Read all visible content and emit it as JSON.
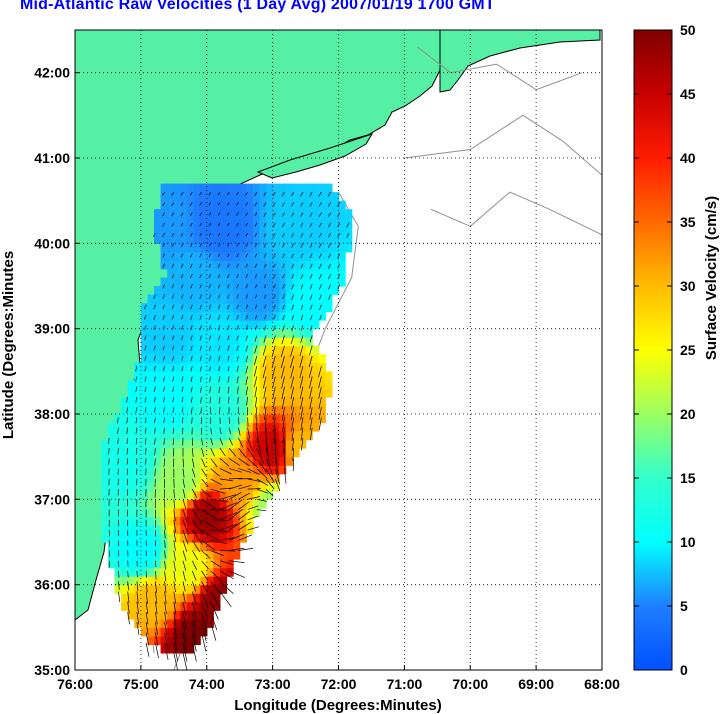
{
  "title": "Mid-Atlantic Raw Velocities (1 Day Avg) 2007/01/19 1700 GMT",
  "colors": {
    "title": "#0000ff",
    "land": "#55f0a4",
    "coast": "#000000",
    "bathymetry": "#909090",
    "grid": "#000000",
    "arrows": "#000000"
  },
  "map": {
    "xlabel": "Longitude (Degrees:Minutes)",
    "ylabel": "Latitude (Degrees:Minutes",
    "lon_range": [
      -76,
      -68
    ],
    "lat_range": [
      35,
      42.5
    ],
    "lon_ticks": [
      {
        "value": -76,
        "label": "76:00"
      },
      {
        "value": -75,
        "label": "75:00"
      },
      {
        "value": -74,
        "label": "74:00"
      },
      {
        "value": -73,
        "label": "73:00"
      },
      {
        "value": -72,
        "label": "72:00"
      },
      {
        "value": -71,
        "label": "71:00"
      },
      {
        "value": -70,
        "label": "70:00"
      },
      {
        "value": -69,
        "label": "69:00"
      },
      {
        "value": -68,
        "label": "68:00"
      }
    ],
    "lat_ticks": [
      {
        "value": 35,
        "label": "35:00"
      },
      {
        "value": 36,
        "label": "36:00"
      },
      {
        "value": 37,
        "label": "37:00"
      },
      {
        "value": 38,
        "label": "38:00"
      },
      {
        "value": 39,
        "label": "39:00"
      },
      {
        "value": 40,
        "label": "40:00"
      },
      {
        "value": 41,
        "label": "41:00"
      },
      {
        "value": 42,
        "label": "42:00"
      }
    ],
    "grid": "dotted"
  },
  "colorbar": {
    "label": "Surface Velocity (cm/s)",
    "range": [
      0,
      50
    ],
    "ticks": [
      {
        "value": 0,
        "label": "0"
      },
      {
        "value": 5,
        "label": "5"
      },
      {
        "value": 10,
        "label": "10"
      },
      {
        "value": 15,
        "label": "15"
      },
      {
        "value": 20,
        "label": "20"
      },
      {
        "value": 25,
        "label": "25"
      },
      {
        "value": 30,
        "label": "30"
      },
      {
        "value": 35,
        "label": "35"
      },
      {
        "value": 40,
        "label": "40"
      },
      {
        "value": 45,
        "label": "45"
      },
      {
        "value": 50,
        "label": "50"
      }
    ],
    "colormap": "jet"
  },
  "chart_data": {
    "type": "heatmap",
    "description_units": "surface current speed in cm/s on a lon/lat grid with direction vectors",
    "x_range": [
      -76,
      -68
    ],
    "y_range": [
      35,
      42.5
    ],
    "value_range": [
      0,
      50
    ],
    "speed_field": [
      {
        "lon": -74.6,
        "lat": 40.2,
        "speed": 6
      },
      {
        "lon": -73.8,
        "lat": 40.2,
        "speed": 4
      },
      {
        "lon": -72.6,
        "lat": 40.2,
        "speed": 8
      },
      {
        "lon": -74.2,
        "lat": 39.6,
        "speed": 7
      },
      {
        "lon": -73.2,
        "lat": 39.4,
        "speed": 6
      },
      {
        "lon": -72.4,
        "lat": 39.3,
        "speed": 10
      },
      {
        "lon": -74.6,
        "lat": 38.9,
        "speed": 8
      },
      {
        "lon": -73.8,
        "lat": 38.8,
        "speed": 9
      },
      {
        "lon": -72.8,
        "lat": 38.5,
        "speed": 30
      },
      {
        "lon": -74.6,
        "lat": 38.2,
        "speed": 10
      },
      {
        "lon": -73.8,
        "lat": 38.0,
        "speed": 13
      },
      {
        "lon": -73.0,
        "lat": 37.6,
        "speed": 45
      },
      {
        "lon": -72.6,
        "lat": 37.6,
        "speed": 30
      },
      {
        "lon": -75.2,
        "lat": 37.4,
        "speed": 12
      },
      {
        "lon": -74.4,
        "lat": 37.2,
        "speed": 20
      },
      {
        "lon": -73.5,
        "lat": 37.2,
        "speed": 32
      },
      {
        "lon": -73.0,
        "lat": 36.9,
        "speed": 20
      },
      {
        "lon": -74.0,
        "lat": 36.8,
        "speed": 48
      },
      {
        "lon": -75.0,
        "lat": 36.4,
        "speed": 10
      },
      {
        "lon": -74.3,
        "lat": 36.2,
        "speed": 24
      },
      {
        "lon": -73.8,
        "lat": 35.8,
        "speed": 49
      },
      {
        "lon": -74.8,
        "lat": 35.8,
        "speed": 30
      },
      {
        "lon": -74.2,
        "lat": 35.4,
        "speed": 50
      }
    ]
  }
}
